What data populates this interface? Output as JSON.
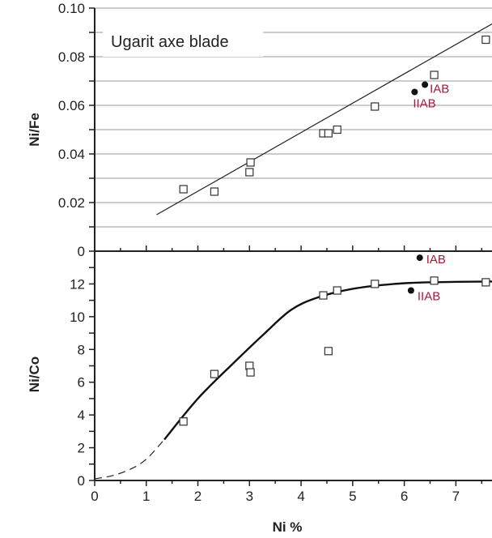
{
  "chart_data": [
    {
      "type": "scatter",
      "title": "Ugarit axe blade",
      "xlabel": "",
      "ylabel": "Ni/Fe",
      "xlim": [
        0,
        7.7
      ],
      "ylim": [
        0,
        0.1
      ],
      "yticks": [
        "0",
        "0.02",
        "0.04",
        "0.06",
        "0.08",
        "0.10"
      ],
      "grid": true,
      "series": [
        {
          "marker": "open-square",
          "points": [
            {
              "x": 1.72,
              "y": 0.0255
            },
            {
              "x": 2.32,
              "y": 0.0245
            },
            {
              "x": 3.0,
              "y": 0.0325
            },
            {
              "x": 3.02,
              "y": 0.0365
            },
            {
              "x": 4.43,
              "y": 0.0485
            },
            {
              "x": 4.53,
              "y": 0.0485
            },
            {
              "x": 4.7,
              "y": 0.05
            },
            {
              "x": 5.43,
              "y": 0.0595
            },
            {
              "x": 6.58,
              "y": 0.0725
            },
            {
              "x": 7.58,
              "y": 0.087
            }
          ]
        },
        {
          "marker": "filled-circle",
          "points": [
            {
              "x": 6.2,
              "y": 0.0655,
              "label": "IIAB"
            },
            {
              "x": 6.4,
              "y": 0.0685,
              "label": "IAB"
            }
          ]
        },
        {
          "marker": "line",
          "points": [
            {
              "x": 1.2,
              "y": 0.015
            },
            {
              "x": 7.7,
              "y": 0.0935
            }
          ]
        }
      ]
    },
    {
      "type": "scatter",
      "title": "",
      "xlabel": "Ni %",
      "ylabel": "Ni/Co",
      "xlim": [
        0,
        7.7
      ],
      "ylim": [
        0,
        14
      ],
      "xticks": [
        "0",
        "1",
        "2",
        "3",
        "4",
        "5",
        "6",
        "7"
      ],
      "yticks": [
        "0",
        "2",
        "4",
        "6",
        "8",
        "10",
        "12"
      ],
      "grid": false,
      "series": [
        {
          "marker": "open-square",
          "points": [
            {
              "x": 1.72,
              "y": 3.6
            },
            {
              "x": 2.32,
              "y": 6.5
            },
            {
              "x": 3.0,
              "y": 7.0
            },
            {
              "x": 3.02,
              "y": 6.6
            },
            {
              "x": 4.43,
              "y": 11.3
            },
            {
              "x": 4.53,
              "y": 7.9
            },
            {
              "x": 4.7,
              "y": 11.6
            },
            {
              "x": 5.43,
              "y": 12.0
            },
            {
              "x": 6.58,
              "y": 12.2
            },
            {
              "x": 7.58,
              "y": 12.1
            }
          ]
        },
        {
          "marker": "filled-circle",
          "points": [
            {
              "x": 6.3,
              "y": 13.6,
              "label": "IAB"
            },
            {
              "x": 6.13,
              "y": 11.6,
              "label": "IIAB"
            }
          ]
        },
        {
          "marker": "curve-solid",
          "points": [
            {
              "x": 1.35,
              "y": 2.5
            },
            {
              "x": 2.0,
              "y": 5.0
            },
            {
              "x": 2.7,
              "y": 7.2
            },
            {
              "x": 3.3,
              "y": 9.0
            },
            {
              "x": 3.8,
              "y": 10.4
            },
            {
              "x": 4.3,
              "y": 11.15
            },
            {
              "x": 5.0,
              "y": 11.7
            },
            {
              "x": 5.8,
              "y": 12.0
            },
            {
              "x": 6.5,
              "y": 12.1
            },
            {
              "x": 7.7,
              "y": 12.15
            }
          ]
        },
        {
          "marker": "curve-dashed",
          "points": [
            {
              "x": 0.0,
              "y": 0.1
            },
            {
              "x": 0.35,
              "y": 0.3
            },
            {
              "x": 0.7,
              "y": 0.7
            },
            {
              "x": 1.0,
              "y": 1.3
            },
            {
              "x": 1.35,
              "y": 2.5
            }
          ]
        }
      ]
    }
  ]
}
